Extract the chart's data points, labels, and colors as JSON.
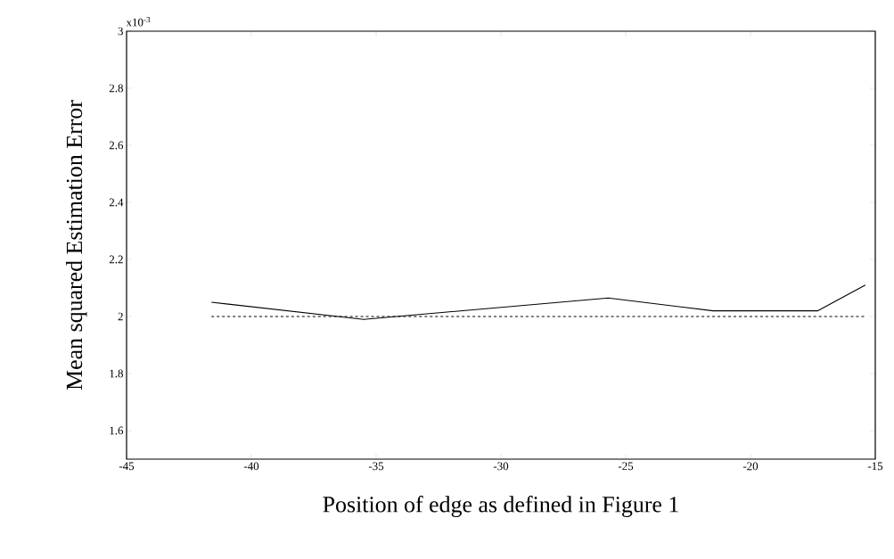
{
  "chart_data": {
    "type": "line",
    "xlabel": "Position of edge as defined in Figure 1",
    "ylabel": "Mean squared Estimation Error",
    "annotations": [
      "x10$^{-3}$"
    ],
    "series": [
      {
        "color": "#000000",
        "line_style": "solid",
        "x": [
          -41.6,
          -35.5,
          -25.7,
          -21.5,
          -17.3,
          -15.4
        ],
        "values": [
          2.05,
          1.99,
          2.065,
          2.02,
          2.02,
          2.11
        ]
      },
      {
        "color": "#000000",
        "line_style": "dashed",
        "x": [
          -41.6,
          -15.4
        ],
        "values": [
          2.0,
          2.0
        ]
      }
    ],
    "xlim": [
      -45,
      -15
    ],
    "xticks": [
      -45,
      -40,
      -35,
      -30,
      -25,
      -20,
      -15
    ],
    "ylim": [
      1.5,
      3
    ],
    "yticks": [
      1.6,
      1.8,
      2,
      2.2,
      2.4,
      2.6,
      2.8,
      3
    ],
    "grid": false,
    "marker": "none"
  }
}
